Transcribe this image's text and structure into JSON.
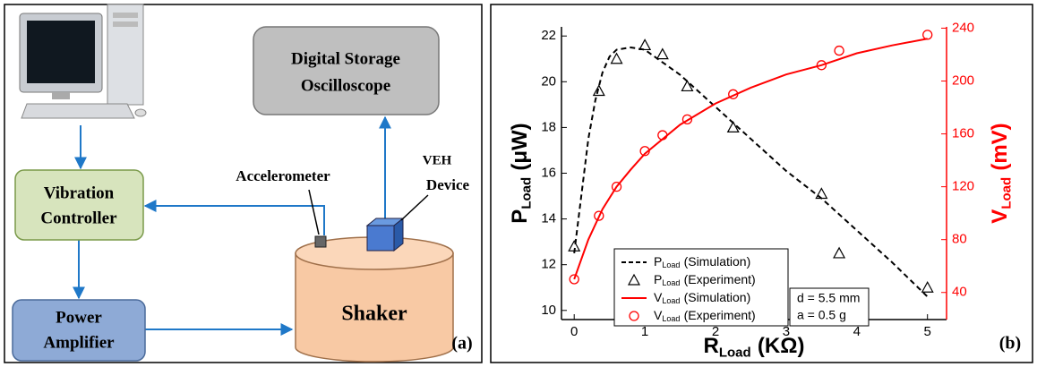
{
  "diagram": {
    "nodes": [
      {
        "lines": [
          "Digital Storage",
          "Oscilloscope"
        ]
      },
      {
        "lines": [
          "Vibration",
          "Controller"
        ]
      },
      {
        "lines": [
          "Power",
          "Amplifier"
        ]
      },
      {
        "lines": [
          "Shaker"
        ]
      }
    ],
    "labels": [
      {
        "lines": [
          "Accelerometer"
        ]
      },
      {
        "lines": [
          "VEH",
          "Device"
        ]
      }
    ],
    "panel_label": "(a)"
  },
  "chart_data": {
    "type": "line",
    "panel_label": "(b)",
    "x_label": {
      "main": "R",
      "sub": "Load",
      "rest": "(KΩ)"
    },
    "y_label": {
      "main": "P",
      "sub": "Load",
      "rest": "(μW)"
    },
    "y2_label": {
      "main": "V",
      "sub": "Load",
      "rest": "(mV)"
    },
    "xlim": [
      -0.18,
      5.27
    ],
    "xticks": [
      0,
      1,
      2,
      3,
      4,
      5
    ],
    "ylim": [
      9.6,
      22.4
    ],
    "yticks": [
      10,
      12,
      14,
      16,
      18,
      20,
      22
    ],
    "y2lim": [
      19.5,
      241
    ],
    "y2ticks": [
      40,
      80,
      120,
      160,
      200,
      240
    ],
    "y2color": "#ff0000",
    "legend": "bottom-left",
    "series": [
      {
        "name": {
          "main": "P",
          "sub": "Load",
          "rest": "(Simulation)"
        },
        "color": "#000000",
        "style": "dashed",
        "x": [
          0,
          0.1,
          0.2,
          0.3,
          0.4,
          0.5,
          0.6,
          0.8,
          1.0,
          1.5,
          2,
          2.5,
          3,
          3.5,
          4,
          4.5,
          5
        ],
        "values": [
          12.5,
          15,
          17.5,
          19.2,
          20.4,
          21.1,
          21.4,
          21.5,
          21.4,
          20.3,
          18.9,
          17.5,
          16.1,
          14.9,
          13.5,
          12.1,
          10.6
        ]
      },
      {
        "name": {
          "main": "P",
          "sub": "Load",
          "rest": "(Experiment)"
        },
        "color": "#000000",
        "style": "triangle",
        "x": [
          0,
          0.35,
          0.6,
          1.0,
          1.25,
          1.6,
          2.25,
          3.5,
          3.75,
          5.0
        ],
        "values": [
          12.8,
          19.6,
          21.0,
          21.6,
          21.2,
          19.8,
          18.0,
          15.1,
          12.5,
          11.0
        ]
      },
      {
        "name": {
          "main": "V",
          "sub": "Load",
          "rest": "(Simulation)"
        },
        "color": "#ff0000",
        "style": "solid",
        "axis": "y2",
        "x": [
          0,
          0.2,
          0.4,
          0.6,
          0.8,
          1,
          1.5,
          2,
          2.5,
          3,
          3.5,
          4,
          4.5,
          5
        ],
        "values": [
          50,
          80,
          103,
          120,
          133,
          145,
          167,
          183,
          195,
          205,
          212,
          221,
          227,
          232
        ]
      },
      {
        "name": {
          "main": "V",
          "sub": "Load",
          "rest": "(Experiment)"
        },
        "color": "#ff0000",
        "style": "circle",
        "axis": "y2",
        "x": [
          0,
          0.35,
          0.6,
          1.0,
          1.25,
          1.6,
          2.25,
          3.5,
          3.75,
          5.0
        ],
        "values": [
          50,
          98,
          120,
          147,
          159,
          171,
          190,
          212,
          223,
          235
        ]
      }
    ],
    "annotation": [
      "d = 5.5 mm",
      "a = 0.5 g"
    ]
  }
}
